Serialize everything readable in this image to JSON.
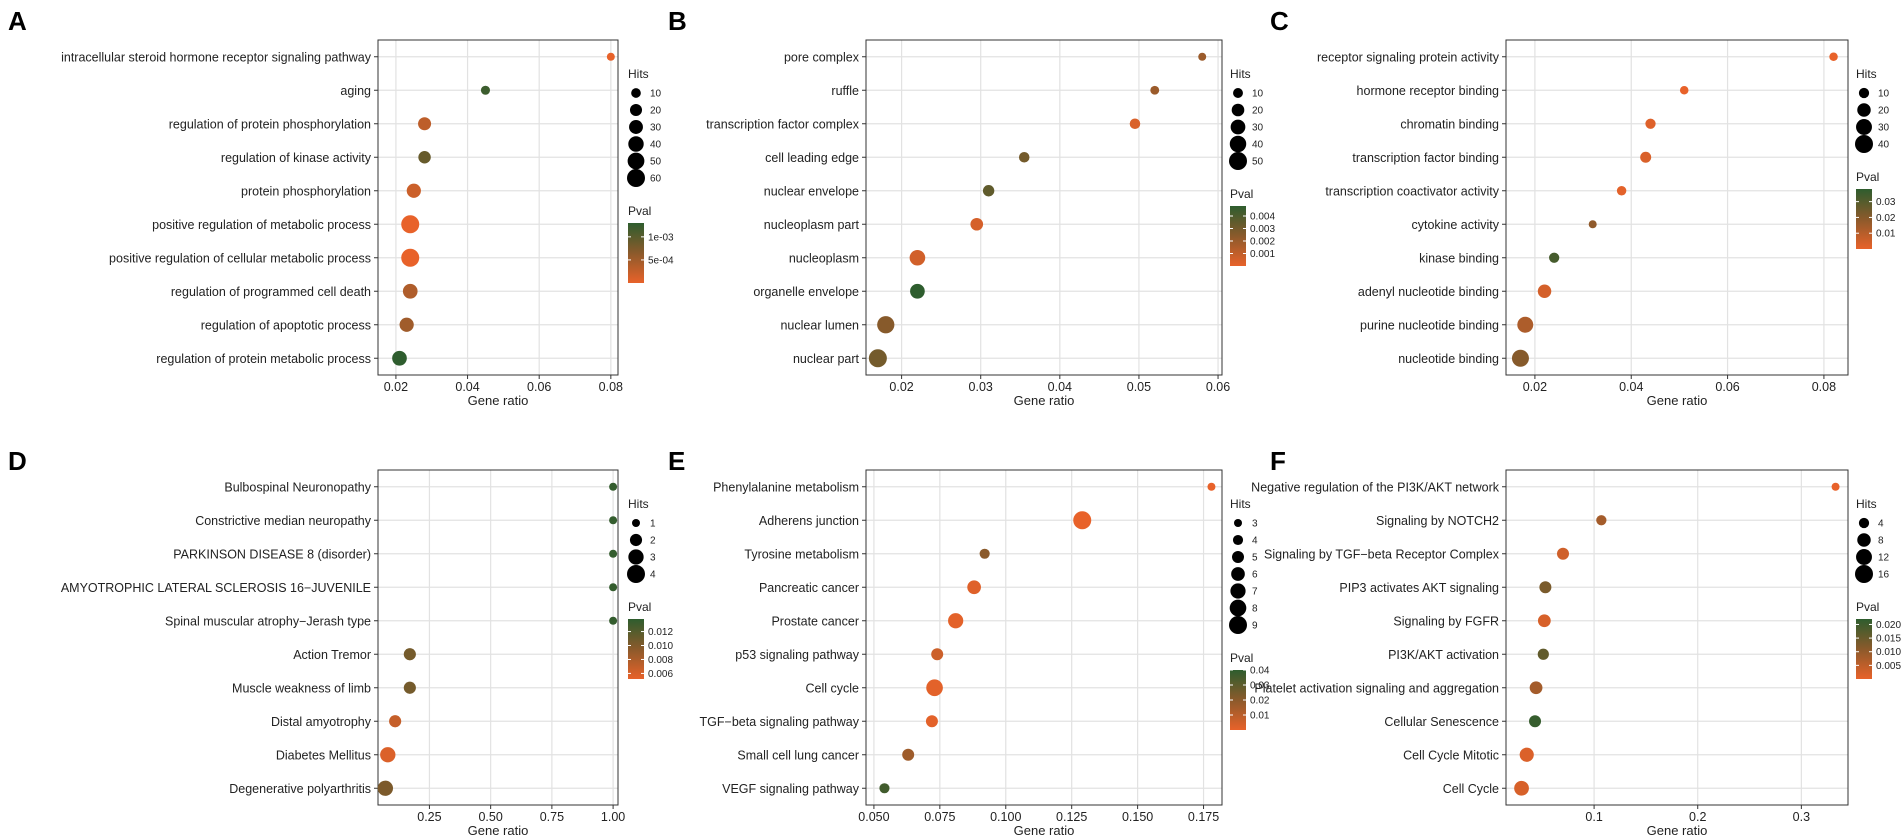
{
  "colors": {
    "low_p": "#e8622a",
    "mid_p": "#8b5a2b",
    "high_p": "#2e5d2e",
    "grid": "#e2e2e2",
    "frame": "#333333"
  },
  "chart_data": [
    {
      "type": "scatter",
      "panel": "A",
      "xlabel": "Gene ratio",
      "xlim": [
        0.015,
        0.082
      ],
      "xticks": [
        0.02,
        0.04,
        0.06,
        0.08
      ],
      "xtick_labels": [
        "0.02",
        "0.04",
        "0.06",
        "0.08"
      ],
      "categories": [
        "intracellular steroid hormone receptor signaling pathway",
        "aging",
        "regulation of protein phosphorylation",
        "regulation of kinase activity",
        "protein phosphorylation",
        "positive regulation of metabolic process",
        "positive regulation of cellular metabolic process",
        "regulation of programmed cell death",
        "regulation of apoptotic process",
        "regulation of protein metabolic process"
      ],
      "x": [
        0.08,
        0.045,
        0.028,
        0.028,
        0.025,
        0.024,
        0.024,
        0.024,
        0.023,
        0.021
      ],
      "hits": [
        5,
        8,
        25,
        22,
        32,
        60,
        60,
        35,
        32,
        35
      ],
      "pval": [
        0.0,
        0.0012,
        0.0003,
        0.0009,
        0.0002,
        0.0,
        0.0,
        0.0004,
        0.0005,
        0.0014
      ],
      "size_legend": {
        "title": "Hits",
        "values": [
          10,
          20,
          30,
          40,
          50,
          60
        ],
        "labels": [
          "10",
          "20",
          "30",
          "40",
          "50",
          "60"
        ],
        "range": [
          5,
          60
        ]
      },
      "color_legend": {
        "title": "Pval",
        "range": [
          0.0,
          0.0013
        ],
        "ticks": [
          0.0005,
          0.001
        ],
        "labels": [
          "5e-04",
          "1e-03"
        ]
      }
    },
    {
      "type": "scatter",
      "panel": "B",
      "xlabel": "Gene ratio",
      "xlim": [
        0.0155,
        0.0605
      ],
      "xticks": [
        0.02,
        0.03,
        0.04,
        0.05,
        0.06
      ],
      "xtick_labels": [
        "0.02",
        "0.03",
        "0.04",
        "0.05",
        "0.06"
      ],
      "categories": [
        "pore complex",
        "ruffle",
        "transcription factor complex",
        "cell leading edge",
        "nuclear envelope",
        "nucleoplasm part",
        "nucleoplasm",
        "organelle envelope",
        "nuclear lumen",
        "nuclear part"
      ],
      "x": [
        0.058,
        0.052,
        0.0495,
        0.0355,
        0.031,
        0.0295,
        0.022,
        0.022,
        0.018,
        0.017
      ],
      "hits": [
        5,
        7,
        12,
        12,
        15,
        20,
        35,
        30,
        45,
        50
      ],
      "pval": [
        0.002,
        0.002,
        0.0004,
        0.003,
        0.0035,
        0.0005,
        0.0006,
        0.0048,
        0.0025,
        0.003
      ],
      "size_legend": {
        "title": "Hits",
        "values": [
          10,
          20,
          30,
          40,
          50
        ],
        "labels": [
          "10",
          "20",
          "30",
          "40",
          "50"
        ],
        "range": [
          5,
          50
        ]
      },
      "color_legend": {
        "title": "Pval",
        "range": [
          0.0,
          0.0048
        ],
        "ticks": [
          0.001,
          0.002,
          0.003,
          0.004
        ],
        "labels": [
          "0.001",
          "0.002",
          "0.003",
          "0.004"
        ]
      }
    },
    {
      "type": "scatter",
      "panel": "C",
      "xlabel": "Gene ratio",
      "xlim": [
        0.014,
        0.085
      ],
      "xticks": [
        0.02,
        0.04,
        0.06,
        0.08
      ],
      "xtick_labels": [
        "0.02",
        "0.04",
        "0.06",
        "0.08"
      ],
      "categories": [
        "receptor signaling protein activity",
        "hormone receptor binding",
        "chromatin binding",
        "transcription factor binding",
        "transcription coactivator activity",
        "cytokine activity",
        "kinase binding",
        "adenyl nucleotide binding",
        "purine nucleotide binding",
        "nucleotide binding"
      ],
      "x": [
        0.082,
        0.051,
        0.044,
        0.043,
        0.038,
        0.032,
        0.024,
        0.022,
        0.018,
        0.017
      ],
      "hits": [
        6,
        6,
        10,
        12,
        8,
        5,
        10,
        20,
        30,
        35
      ],
      "pval": [
        0.0,
        0.0,
        0.002,
        0.003,
        0.001,
        0.018,
        0.033,
        0.004,
        0.012,
        0.02
      ],
      "size_legend": {
        "title": "Hits",
        "values": [
          10,
          20,
          30,
          40
        ],
        "labels": [
          "10",
          "20",
          "30",
          "40"
        ],
        "range": [
          5,
          40
        ]
      },
      "color_legend": {
        "title": "Pval",
        "range": [
          0.0,
          0.038
        ],
        "ticks": [
          0.01,
          0.02,
          0.03
        ],
        "labels": [
          "0.01",
          "0.02",
          "0.03"
        ]
      }
    },
    {
      "type": "scatter",
      "panel": "D",
      "xlabel": "Gene ratio",
      "xlim": [
        0.04,
        1.02
      ],
      "xticks": [
        0.25,
        0.5,
        0.75,
        1.0
      ],
      "xtick_labels": [
        "0.25",
        "0.50",
        "0.75",
        "1.00"
      ],
      "categories": [
        "Bulbospinal Neuronopathy",
        "Constrictive median neuropathy",
        "PARKINSON DISEASE 8 (disorder)",
        "AMYOTROPHIC LATERAL SCLEROSIS 16−JUVENILE",
        "Spinal muscular atrophy−Jerash type",
        "Action Tremor",
        "Muscle weakness of limb",
        "Distal amyotrophy",
        "Diabetes Mellitus",
        "Degenerative polyarthritis"
      ],
      "x": [
        1.0,
        1.0,
        1.0,
        1.0,
        1.0,
        0.17,
        0.17,
        0.11,
        0.08,
        0.07
      ],
      "hits": [
        1,
        1,
        1,
        1,
        1,
        2,
        2,
        2,
        3,
        3
      ],
      "pval": [
        0.0135,
        0.0135,
        0.0135,
        0.0135,
        0.0135,
        0.0105,
        0.0105,
        0.0068,
        0.0058,
        0.0102
      ],
      "size_legend": {
        "title": "Hits",
        "values": [
          1,
          2,
          3,
          4
        ],
        "labels": [
          "1",
          "2",
          "3",
          "4"
        ],
        "range": [
          1,
          4
        ]
      },
      "color_legend": {
        "title": "Pval",
        "range": [
          0.0052,
          0.0138
        ],
        "ticks": [
          0.006,
          0.008,
          0.01,
          0.012
        ],
        "labels": [
          "0.006",
          "0.008",
          "0.010",
          "0.012"
        ]
      }
    },
    {
      "type": "scatter",
      "panel": "E",
      "xlabel": "Gene ratio",
      "xlim": [
        0.047,
        0.182
      ],
      "xticks": [
        0.05,
        0.075,
        0.1,
        0.125,
        0.15,
        0.175
      ],
      "xtick_labels": [
        "0.050",
        "0.075",
        "0.100",
        "0.125",
        "0.150",
        "0.175"
      ],
      "categories": [
        "Phenylalanine metabolism",
        "Adherens junction",
        "Tyrosine metabolism",
        "Pancreatic cancer",
        "Prostate cancer",
        "p53 signaling pathway",
        "Cell cycle",
        "TGF−beta signaling pathway",
        "Small cell lung cancer",
        "VEGF signaling pathway"
      ],
      "x": [
        0.178,
        0.129,
        0.092,
        0.088,
        0.081,
        0.074,
        0.073,
        0.072,
        0.063,
        0.054
      ],
      "hits": [
        3,
        9,
        4,
        6,
        7,
        5,
        8,
        5,
        5,
        4
      ],
      "pval": [
        0.0,
        0.0,
        0.02,
        0.002,
        0.001,
        0.006,
        0.001,
        0.001,
        0.016,
        0.036
      ],
      "size_legend": {
        "title": "Hits",
        "values": [
          3,
          4,
          5,
          6,
          7,
          8,
          9
        ],
        "labels": [
          "3",
          "4",
          "5",
          "6",
          "7",
          "8",
          "9"
        ],
        "range": [
          3,
          9
        ]
      },
      "color_legend": {
        "title": "Pval",
        "range": [
          0.0,
          0.04
        ],
        "ticks": [
          0.01,
          0.02,
          0.03,
          0.04
        ],
        "labels": [
          "0.01",
          "0.02",
          "0.03",
          "0.04"
        ]
      }
    },
    {
      "type": "scatter",
      "panel": "F",
      "xlabel": "Gene ratio",
      "xlim": [
        0.015,
        0.345
      ],
      "xticks": [
        0.1,
        0.2,
        0.3
      ],
      "xtick_labels": [
        "0.1",
        "0.2",
        "0.3"
      ],
      "categories": [
        "Negative regulation of the PI3K/AKT network",
        "Signaling by NOTCH2",
        "Signaling by TGF−beta Receptor Complex",
        "PIP3 activates AKT signaling",
        "Signaling by FGFR",
        "PI3K/AKT activation",
        "Platelet activation signaling and aggregation",
        "Cellular Senescence",
        "Cell Cycle Mitotic",
        "Cell Cycle"
      ],
      "x": [
        0.333,
        0.107,
        0.07,
        0.053,
        0.052,
        0.051,
        0.044,
        0.043,
        0.035,
        0.03
      ],
      "hits": [
        2,
        4,
        6,
        6,
        7,
        5,
        7,
        6,
        9,
        10
      ],
      "pval": [
        0.0,
        0.008,
        0.003,
        0.013,
        0.002,
        0.016,
        0.008,
        0.021,
        0.0015,
        0.002
      ],
      "size_legend": {
        "title": "Hits",
        "values": [
          4,
          8,
          12,
          16
        ],
        "labels": [
          "4",
          "8",
          "12",
          "16"
        ],
        "range": [
          2,
          16
        ]
      },
      "color_legend": {
        "title": "Pval",
        "range": [
          0.0,
          0.022
        ],
        "ticks": [
          0.005,
          0.01,
          0.015,
          0.02
        ],
        "labels": [
          "0.005",
          "0.010",
          "0.015",
          "0.020"
        ]
      }
    }
  ]
}
